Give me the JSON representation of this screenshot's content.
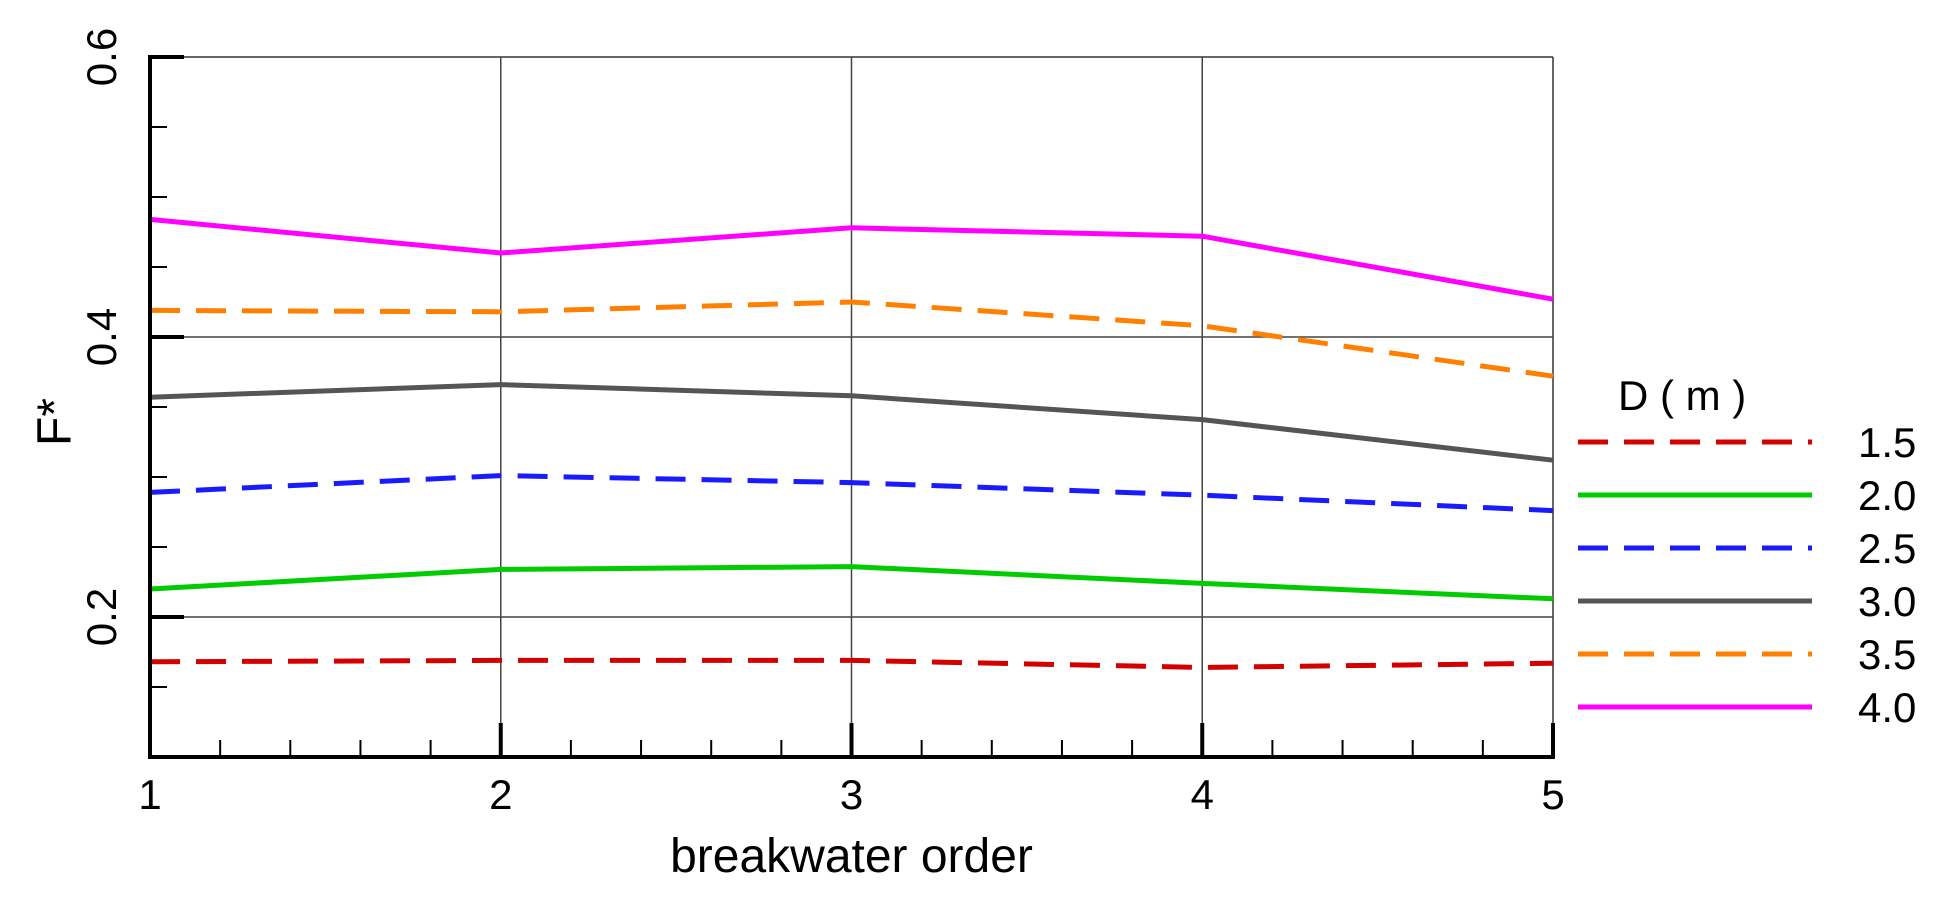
{
  "chart_data": {
    "type": "line",
    "xlabel": "breakwater order",
    "ylabel": "F*",
    "x": [
      1,
      2,
      3,
      4,
      5
    ],
    "xlim": [
      1,
      5
    ],
    "ylim": [
      0.1,
      0.6
    ],
    "xticks": [
      "1",
      "2",
      "3",
      "4",
      "5"
    ],
    "yticks": [
      "0.2",
      "0.4",
      "0.6"
    ],
    "ytick_values": [
      0.2,
      0.4,
      0.6
    ],
    "grid": true,
    "legend_title": "D ( m )",
    "legend_position": "right",
    "series": [
      {
        "name": "1.5",
        "color": "#d40000",
        "dashed": true,
        "values": [
          0.168,
          0.169,
          0.169,
          0.164,
          0.167
        ]
      },
      {
        "name": "2.0",
        "color": "#00cc00",
        "dashed": false,
        "values": [
          0.22,
          0.234,
          0.236,
          0.224,
          0.213
        ]
      },
      {
        "name": "2.5",
        "color": "#1a1aff",
        "dashed": true,
        "values": [
          0.289,
          0.301,
          0.296,
          0.287,
          0.276
        ]
      },
      {
        "name": "3.0",
        "color": "#555555",
        "dashed": false,
        "values": [
          0.357,
          0.366,
          0.358,
          0.341,
          0.312
        ]
      },
      {
        "name": "3.5",
        "color": "#ff8000",
        "dashed": true,
        "values": [
          0.419,
          0.418,
          0.425,
          0.408,
          0.372
        ]
      },
      {
        "name": "4.0",
        "color": "#ff00ff",
        "dashed": false,
        "values": [
          0.484,
          0.46,
          0.478,
          0.472,
          0.427
        ]
      }
    ]
  }
}
